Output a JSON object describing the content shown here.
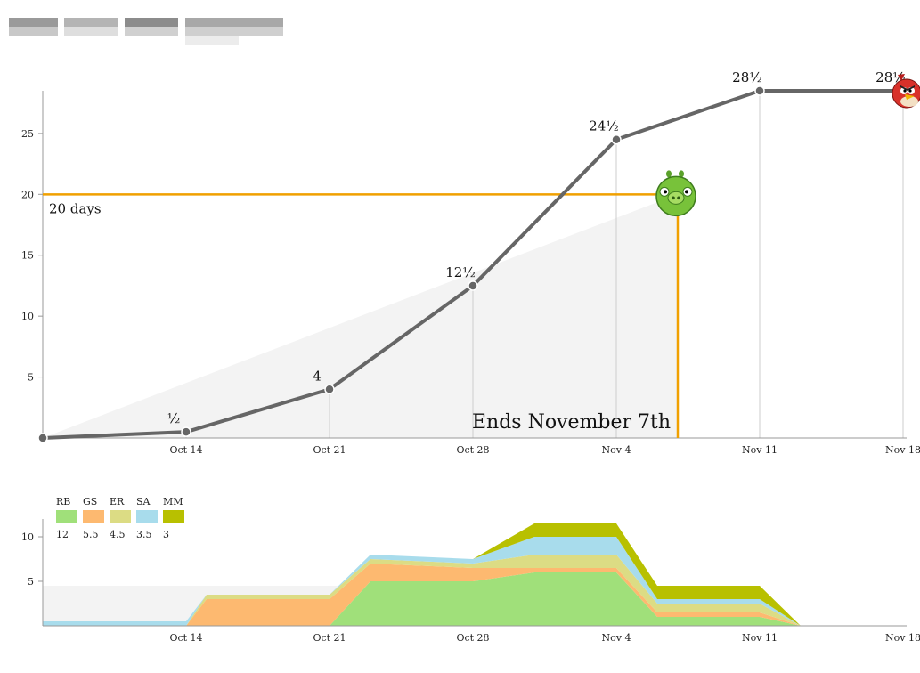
{
  "colors": {
    "progress_line": "#666666",
    "deadline": "#f0a000",
    "ideal_area": "#f3f3f3",
    "grid": "#cccccc",
    "axis": "#999999"
  },
  "icons": {
    "deadline_marker": "green-pig-icon",
    "current_marker": "red-bird-icon"
  },
  "chart_data": [
    {
      "type": "line",
      "x_dates": [
        "Oct 7",
        "Oct 14",
        "Oct 21",
        "Oct 28",
        "Nov 4",
        "Nov 11",
        "Nov 18"
      ],
      "values": [
        0,
        0.5,
        4,
        12.5,
        24.5,
        28.5,
        28.5
      ],
      "point_labels": [
        "",
        "½",
        "4",
        "12½",
        "24½",
        "28½",
        "28½"
      ],
      "xticks": [
        "Oct 14",
        "Oct 21",
        "Oct 28",
        "Nov 4",
        "Nov 11",
        "Nov 18"
      ],
      "yticks": [
        "5",
        "10",
        "15",
        "20",
        "25"
      ],
      "ylim": [
        0,
        28.5
      ],
      "deadline": {
        "target_days": 20,
        "target_label": "20 days",
        "end_date": "Nov 7",
        "end_label": "Ends November 7th"
      },
      "ideal_line": {
        "from": [
          "Oct 7",
          0
        ],
        "to": [
          "Nov 7",
          20
        ]
      }
    },
    {
      "type": "area",
      "stacked": true,
      "x_dates": [
        "Oct 7",
        "Oct 14",
        "Oct 15",
        "Oct 21",
        "Oct 23",
        "Oct 28",
        "Oct 31",
        "Nov 4",
        "Nov 6",
        "Nov 11",
        "Nov 13",
        "Nov 18"
      ],
      "series": [
        {
          "name": "RB",
          "total": "12",
          "color": "#a0e07a",
          "values": [
            0,
            0,
            0,
            0,
            5,
            5,
            6,
            6,
            1,
            1,
            0,
            0
          ]
        },
        {
          "name": "GS",
          "total": "5.5",
          "color": "#fdb970",
          "values": [
            0,
            0,
            3,
            3,
            2,
            1.5,
            0.5,
            0.5,
            0.5,
            0.5,
            0,
            0
          ]
        },
        {
          "name": "ER",
          "total": "4.5",
          "color": "#dcdc84",
          "values": [
            0,
            0,
            0.5,
            0.5,
            0.5,
            0.5,
            1.5,
            1.5,
            1,
            1,
            0,
            0
          ]
        },
        {
          "name": "SA",
          "total": "3.5",
          "color": "#a8dcec",
          "values": [
            0.5,
            0.5,
            0,
            0,
            0.5,
            0.5,
            2,
            2,
            0.5,
            0.5,
            0,
            0
          ]
        },
        {
          "name": "MM",
          "total": "3",
          "color": "#b8c000",
          "values": [
            0,
            0,
            0,
            0,
            0,
            0,
            1.5,
            1.5,
            1.5,
            1.5,
            0,
            0
          ]
        }
      ],
      "xticks": [
        "Oct 14",
        "Oct 21",
        "Oct 28",
        "Nov 4",
        "Nov 11",
        "Nov 18"
      ],
      "yticks": [
        "5",
        "10"
      ],
      "ylim": [
        0,
        12
      ],
      "background_band": {
        "to_date": "Oct 21",
        "value": 4.5
      }
    }
  ]
}
